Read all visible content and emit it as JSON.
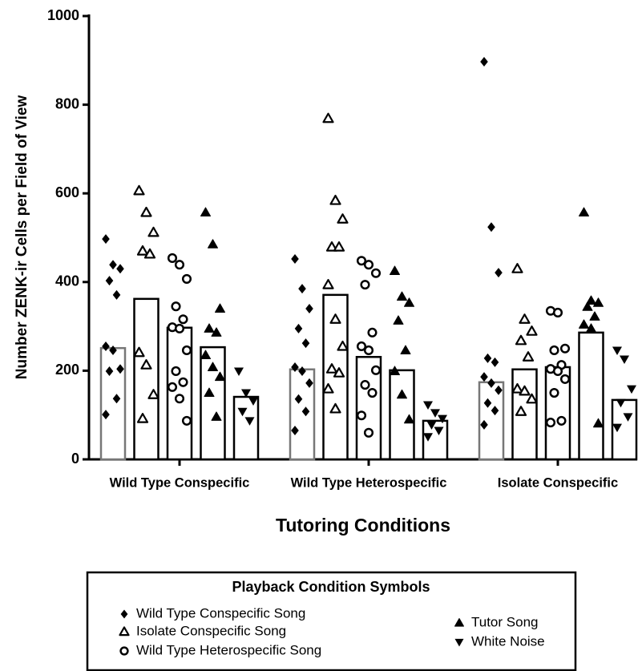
{
  "chart_data": {
    "type": "bar",
    "y_label": "Number ZENK-ir Cells per Field of View",
    "x_label": "Tutoring Conditions",
    "categories": [
      "Wild Type Conspecific",
      "Wild Type Heterospecific",
      "Isolate Conspecific"
    ],
    "ylim": [
      0,
      1000
    ],
    "yticks": [
      0,
      200,
      400,
      600,
      800,
      1000
    ],
    "legend_title": "Playback Condition Symbols",
    "series": [
      {
        "name": "Wild Type Conspecific Song",
        "marker": "diamond",
        "color": "#000000",
        "bar_edge": "#777777",
        "values": [
          251,
          203,
          174
        ],
        "points": [
          [
            497,
            439,
            430,
            403,
            371,
            255,
            246,
            204,
            199,
            137,
            101
          ],
          [
            452,
            385,
            340,
            295,
            262,
            208,
            199,
            172,
            136,
            108,
            65
          ],
          [
            897,
            524,
            421,
            228,
            219,
            186,
            172,
            156,
            127,
            110,
            78
          ]
        ]
      },
      {
        "name": "Isolate Conspecific Song",
        "marker": "triangle-open",
        "color": "#000000",
        "bar_edge": "#000000",
        "values": [
          362,
          371,
          203
        ],
        "points": [
          [
            606,
            557,
            512,
            470,
            463,
            241,
            213,
            146,
            92
          ],
          [
            769,
            584,
            542,
            479,
            479,
            394,
            316,
            255,
            204,
            195,
            159,
            114
          ],
          [
            430,
            316,
            289,
            268,
            231,
            159,
            154,
            136,
            108
          ]
        ]
      },
      {
        "name": "Wild Type Heterospecific Song",
        "marker": "circle-open",
        "color": "#000000",
        "bar_edge": "#000000",
        "values": [
          297,
          231,
          208
        ],
        "points": [
          [
            454,
            439,
            407,
            345,
            316,
            298,
            295,
            246,
            199,
            174,
            163,
            137,
            87
          ],
          [
            448,
            439,
            420,
            394,
            286,
            255,
            246,
            201,
            168,
            150,
            99,
            60
          ],
          [
            335,
            331,
            250,
            246,
            213,
            204,
            199,
            181,
            150,
            87,
            83
          ]
        ]
      },
      {
        "name": "Tutor Song",
        "marker": "triangle",
        "color": "#000000",
        "bar_edge": "#000000",
        "values": [
          253,
          201,
          286
        ],
        "points": [
          [
            557,
            485,
            340,
            295,
            286,
            235,
            208,
            186,
            150,
            96
          ],
          [
            425,
            367,
            353,
            313,
            246,
            199,
            146,
            90
          ],
          [
            557,
            358,
            353,
            344,
            322,
            304,
            295,
            81
          ]
        ]
      },
      {
        "name": "White Noise",
        "marker": "triangle-down",
        "color": "#000000",
        "bar_edge": "#000000",
        "values": [
          141,
          87,
          134
        ],
        "points": [
          [
            199,
            150,
            132,
            108,
            87
          ],
          [
            123,
            105,
            92,
            78,
            65,
            51
          ],
          [
            246,
            226,
            159,
            128,
            96,
            72
          ]
        ]
      }
    ]
  }
}
